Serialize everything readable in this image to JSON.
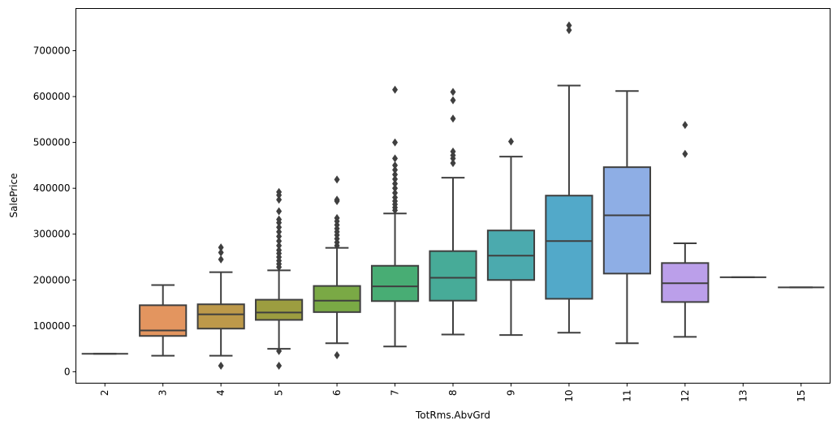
{
  "chart_data": {
    "type": "box",
    "xlabel": "TotRms.AbvGrd",
    "ylabel": "SalePrice",
    "ylim": [
      -25000,
      792000
    ],
    "yticks": [
      0,
      100000,
      200000,
      300000,
      400000,
      500000,
      600000,
      700000
    ],
    "ytick_labels": [
      "0",
      "100000",
      "200000",
      "300000",
      "400000",
      "500000",
      "600000",
      "700000"
    ],
    "grid": false,
    "categories": [
      "2",
      "3",
      "4",
      "5",
      "6",
      "7",
      "8",
      "9",
      "10",
      "11",
      "12",
      "13",
      "15"
    ],
    "boxes": [
      {
        "cat": "2",
        "color": "#f2898d",
        "whislo": 39000,
        "q1": 39000,
        "med": 39000,
        "q3": 39000,
        "whishi": 39000,
        "fliers": []
      },
      {
        "cat": "3",
        "color": "#e3955f",
        "whislo": 35000,
        "q1": 78000,
        "med": 90000,
        "q3": 145000,
        "whishi": 189000,
        "fliers": []
      },
      {
        "cat": "4",
        "color": "#bd994a",
        "whislo": 35000,
        "q1": 94000,
        "med": 125000,
        "q3": 147000,
        "whishi": 217000,
        "fliers": [
          13000,
          245000,
          260000,
          271000
        ]
      },
      {
        "cat": "5",
        "color": "#9c9d40",
        "whislo": 50000,
        "q1": 113000,
        "med": 129000,
        "q3": 157000,
        "whishi": 221000,
        "fliers": [
          13000,
          45000,
          228000,
          235000,
          242000,
          250000,
          258000,
          265000,
          275000,
          285000,
          295000,
          305000,
          315000,
          325000,
          332000,
          350000,
          375000,
          385000,
          392000
        ]
      },
      {
        "cat": "6",
        "color": "#7aa945",
        "whislo": 62000,
        "q1": 130000,
        "med": 155000,
        "q3": 187000,
        "whishi": 270000,
        "fliers": [
          36000,
          275000,
          282000,
          290000,
          298000,
          305000,
          312000,
          320000,
          328000,
          335000,
          372000,
          375000,
          419000
        ]
      },
      {
        "cat": "7",
        "color": "#48ad74",
        "whislo": 55000,
        "q1": 154000,
        "med": 186000,
        "q3": 231000,
        "whishi": 345000,
        "fliers": [
          352000,
          358000,
          365000,
          372000,
          380000,
          390000,
          400000,
          410000,
          420000,
          430000,
          440000,
          450000,
          465000,
          500000,
          615000
        ]
      },
      {
        "cat": "8",
        "color": "#47ab98",
        "whislo": 81000,
        "q1": 155000,
        "med": 205000,
        "q3": 263000,
        "whishi": 423000,
        "fliers": [
          455000,
          465000,
          472000,
          480000,
          552000,
          592000,
          610000
        ]
      },
      {
        "cat": "9",
        "color": "#4baaae",
        "whislo": 80000,
        "q1": 200000,
        "med": 253000,
        "q3": 308000,
        "whishi": 469000,
        "fliers": [
          502000
        ]
      },
      {
        "cat": "10",
        "color": "#52a9c9",
        "whislo": 85000,
        "q1": 159000,
        "med": 285000,
        "q3": 384000,
        "whishi": 624000,
        "fliers": [
          745000,
          755000
        ]
      },
      {
        "cat": "11",
        "color": "#8eaee5",
        "whislo": 62000,
        "q1": 214000,
        "med": 341000,
        "q3": 446000,
        "whishi": 612000,
        "fliers": []
      },
      {
        "cat": "12",
        "color": "#bb9fea",
        "whislo": 76000,
        "q1": 152000,
        "med": 193000,
        "q3": 237000,
        "whishi": 280000,
        "fliers": [
          475000,
          538000
        ]
      },
      {
        "cat": "13",
        "color": "#e38fdc",
        "whislo": 206000,
        "q1": 206000,
        "med": 206000,
        "q3": 206000,
        "whishi": 206000,
        "fliers": []
      },
      {
        "cat": "15",
        "color": "#f08bb8",
        "whislo": 184000,
        "q1": 184000,
        "med": 184000,
        "q3": 184000,
        "whishi": 184000,
        "fliers": []
      }
    ]
  }
}
